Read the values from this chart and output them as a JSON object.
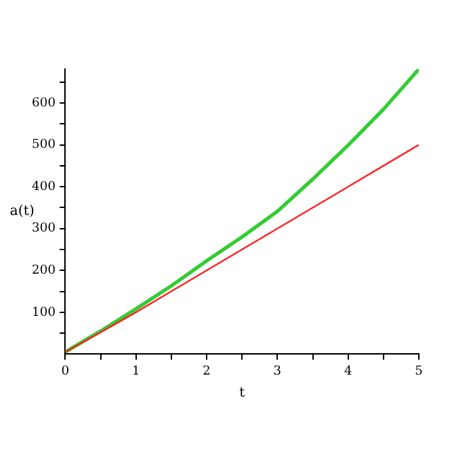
{
  "chart_data": {
    "type": "line",
    "xlabel": "t",
    "ylabel": "a(t)",
    "x": [
      0,
      0.5,
      1,
      1.5,
      2,
      2.5,
      3,
      3.5,
      4,
      4.5,
      5
    ],
    "series": [
      {
        "color": "#33cc33",
        "values": [
          5,
          55,
          108,
          163,
          223,
          280,
          341,
          418,
          499,
          585,
          681
        ]
      },
      {
        "color": "#ff2222",
        "values": [
          5,
          52,
          100,
          150,
          200,
          250,
          300,
          350,
          400,
          450,
          500
        ]
      }
    ],
    "xlim": [
      0,
      5
    ],
    "ylim": [
      0,
      681
    ],
    "xticks": [
      0,
      {
        "value": 0.5,
        "label": null
      },
      1,
      {
        "value": 1.5,
        "label": null
      },
      2,
      {
        "value": 2.5,
        "label": null
      },
      3,
      {
        "value": 3.5,
        "label": null
      },
      4,
      {
        "value": 4.5,
        "label": null
      },
      5
    ],
    "yticks": [
      {
        "value": 50,
        "label": null
      },
      100,
      {
        "value": 150,
        "label": null
      },
      200,
      {
        "value": 250,
        "label": null
      },
      300,
      {
        "value": 350,
        "label": null
      },
      400,
      {
        "value": 450,
        "label": null
      },
      500,
      {
        "value": 550,
        "label": null
      },
      600,
      {
        "value": 650,
        "label": null
      }
    ],
    "grid": false,
    "legend": false,
    "marker": "none",
    "line_style": "solid"
  }
}
